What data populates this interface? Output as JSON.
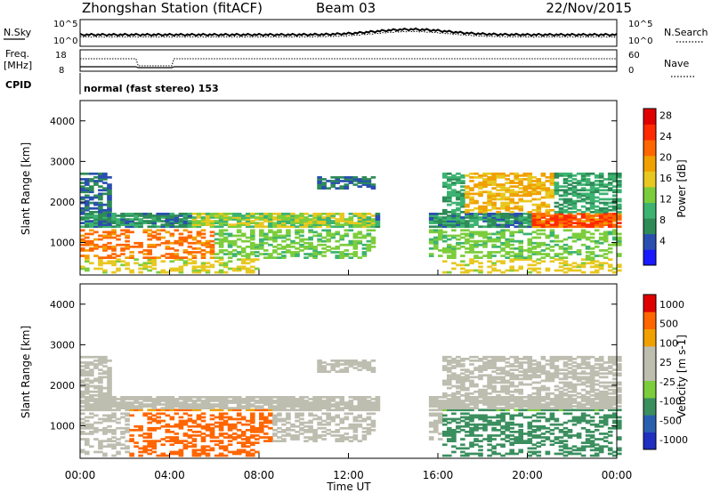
{
  "header": {
    "station": "Zhongshan Station (fitACF)",
    "beam": "Beam 03",
    "date": "22/Nov/2015"
  },
  "summary_panels": {
    "nsky_label": "N.Sky",
    "nsky_ticks": [
      "10^5",
      "10^0"
    ],
    "nsearch_label": "N.Search",
    "nsearch_ticks": [
      "10^5",
      "10^0"
    ],
    "freq_label": "Freq.",
    "freq_unit": "[MHz]",
    "freq_ticks": [
      "18",
      "8"
    ],
    "nave_label": "Nave",
    "nave_ticks": [
      "60",
      "0"
    ],
    "cpid_label": "CPID",
    "cpid_value": "normal (fast stereo) 153"
  },
  "colors": {
    "power": [
      "#1a1aff",
      "#2a4fb0",
      "#2e8b57",
      "#3cb371",
      "#7ccd3c",
      "#e8c820",
      "#f0a000",
      "#ff6600",
      "#ff2a00",
      "#e00000"
    ],
    "velocity": [
      "#e00000",
      "#ff6600",
      "#f0a000",
      "#bdbdb0",
      "#bdbdb0",
      "#7ccd3c",
      "#3b8f5f",
      "#2a5fb0",
      "#2030c0"
    ]
  },
  "chart_data": [
    {
      "type": "heatmap",
      "quantity": "power",
      "ylabel": "Slant Range [km]",
      "yticks": [
        "1000",
        "2000",
        "3000",
        "4000"
      ],
      "ylim": [
        200,
        4500
      ],
      "xlim_hours": [
        0,
        24
      ],
      "colorbar_label": "Power [dB]",
      "colorbar_ticks": [
        "4",
        "8",
        "12",
        "16",
        "20",
        "24",
        "28"
      ],
      "colorbar_range": [
        0,
        30
      ]
    },
    {
      "type": "heatmap",
      "quantity": "velocity",
      "ylabel": "Slant Range [km]",
      "yticks": [
        "1000",
        "2000",
        "3000",
        "4000"
      ],
      "ylim": [
        200,
        4500
      ],
      "xlim_hours": [
        0,
        24
      ],
      "xticks": [
        "00:00",
        "04:00",
        "08:00",
        "12:00",
        "16:00",
        "20:00",
        "00:00"
      ],
      "xlabel": "Time UT",
      "colorbar_label": "Velocity [m s-1]",
      "colorbar_ticks": [
        "1000",
        "500",
        "100",
        "25",
        "-25",
        "-100",
        "-500",
        "-1000"
      ]
    }
  ]
}
